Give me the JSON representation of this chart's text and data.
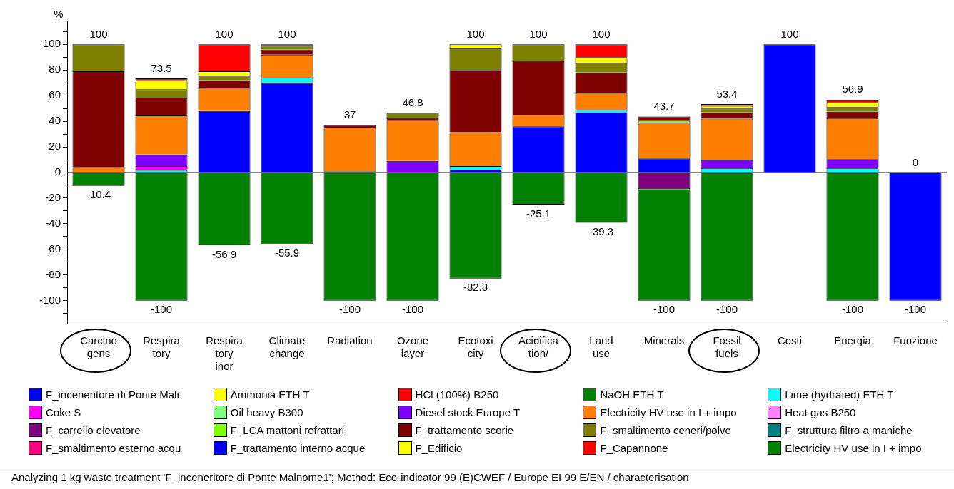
{
  "chart_data": {
    "type": "bar",
    "stacked": true,
    "ylabel": "%",
    "categories": [
      "Carcinogens",
      "Respiratory",
      "Respiratory inor",
      "Climate change",
      "Radiation",
      "Ozone layer",
      "Ecotoxicity",
      "Acidification/",
      "Land use",
      "Minerals",
      "Fossil fuels",
      "Costi",
      "Energia",
      "Funzione"
    ],
    "series": [
      {
        "name": "F_inceneritore di Ponte Malr",
        "color": "#0000ff",
        "values": [
          null,
          null,
          48,
          70,
          null,
          null,
          2.5,
          36,
          47,
          11,
          null,
          100,
          null,
          -100
        ]
      },
      {
        "name": "Ammonia ETH T",
        "color": "#ffff00",
        "values": [
          null,
          null,
          null,
          null,
          null,
          null,
          null,
          null,
          null,
          null,
          null,
          null,
          null,
          null
        ]
      },
      {
        "name": "HCl (100%) B250",
        "color": "#ff0000",
        "values": [
          null,
          null,
          null,
          null,
          null,
          null,
          null,
          null,
          null,
          null,
          null,
          null,
          null,
          null
        ]
      },
      {
        "name": "NaOH ETH T",
        "color": "#008000",
        "values": [
          null,
          null,
          null,
          null,
          1,
          null,
          null,
          null,
          null,
          null,
          null,
          null,
          null,
          null
        ]
      },
      {
        "name": "Lime (hydrated) ETH T",
        "color": "#00ffff",
        "values": [
          null,
          2,
          null,
          4,
          null,
          null,
          2.5,
          null,
          2,
          null,
          3.5,
          null,
          3.5,
          null
        ]
      },
      {
        "name": "Coke S",
        "color": "#ff00ff",
        "values": [
          null,
          3,
          null,
          null,
          null,
          null,
          null,
          null,
          null,
          null,
          null,
          null,
          null,
          null
        ]
      },
      {
        "name": "Oil heavy B300",
        "color": "#80ff80",
        "values": [
          null,
          null,
          null,
          null,
          null,
          null,
          null,
          null,
          null,
          null,
          null,
          null,
          null,
          null
        ]
      },
      {
        "name": "Diesel stock Europe T",
        "color": "#8000ff",
        "values": [
          null,
          9,
          null,
          null,
          null,
          9,
          null,
          null,
          null,
          null,
          6.5,
          null,
          7,
          null
        ]
      },
      {
        "name": "Electricity HV use in I + impo",
        "color": "#ff8000",
        "values": [
          4,
          30.5,
          18,
          18,
          34,
          31.5,
          26.5,
          9,
          13,
          28,
          32,
          null,
          32,
          null
        ]
      },
      {
        "name": "Heat gas B250",
        "color": "#ff80ff",
        "values": [
          null,
          null,
          null,
          null,
          null,
          null,
          null,
          null,
          null,
          null,
          null,
          null,
          null,
          null
        ]
      },
      {
        "name": "F_carrello elevatore",
        "color": "#800080",
        "values": [
          null,
          null,
          null,
          null,
          null,
          null,
          null,
          null,
          null,
          -13,
          null,
          null,
          null,
          null
        ]
      },
      {
        "name": "F_LCA mattoni refrattari",
        "color": "#80ff00",
        "values": [
          null,
          null,
          null,
          null,
          null,
          null,
          null,
          null,
          null,
          1.5,
          null,
          null,
          null,
          null
        ]
      },
      {
        "name": "F_trattamento scorie",
        "color": "#800000",
        "values": [
          75,
          14,
          6,
          4,
          2,
          2,
          48.5,
          42,
          16,
          3.2,
          5,
          null,
          5,
          null
        ]
      },
      {
        "name": "F_smaltimento ceneri/polve",
        "color": "#808000",
        "values": [
          21,
          6.5,
          3.5,
          3,
          null,
          4.3,
          17,
          13,
          7.5,
          null,
          3,
          null,
          3.5,
          null
        ]
      },
      {
        "name": "F_struttura filtro a maniche",
        "color": "#008080",
        "values": [
          null,
          null,
          null,
          null,
          null,
          null,
          null,
          null,
          null,
          null,
          null,
          null,
          null,
          null
        ]
      },
      {
        "name": "F_smaltimento esterno acqu",
        "color": "#ff0080",
        "values": [
          null,
          null,
          null,
          null,
          null,
          null,
          null,
          null,
          null,
          null,
          null,
          null,
          null,
          null
        ]
      },
      {
        "name": "F_trattamento interno acque",
        "color": "#0000ff",
        "values": [
          null,
          null,
          null,
          null,
          null,
          null,
          null,
          null,
          null,
          null,
          null,
          null,
          null,
          null
        ]
      },
      {
        "name": "F_Edificio",
        "color": "#ffff00",
        "values": [
          null,
          7,
          3.5,
          null,
          null,
          null,
          3,
          null,
          4.5,
          null,
          2,
          null,
          4,
          null
        ]
      },
      {
        "name": "F_Capannone",
        "color": "#ff0000",
        "values": [
          null,
          1.5,
          21,
          1,
          null,
          null,
          null,
          null,
          10,
          null,
          1.4,
          null,
          1.9,
          null
        ]
      },
      {
        "name": "Electricity HV use in I + impo",
        "color": "#008000",
        "values": [
          -10.4,
          -100,
          -56.9,
          -55.9,
          -100,
          -100,
          -82.8,
          -25.1,
          -39.3,
          -87,
          -100,
          null,
          -100,
          null
        ]
      }
    ],
    "ylim": [
      -118,
      118
    ],
    "yticks": [
      -100,
      {
        "value": -110,
        "label": null
      },
      {
        "value": -90,
        "label": null
      },
      -80,
      {
        "value": -70,
        "label": null
      },
      -60,
      {
        "value": -50,
        "label": null
      },
      -40,
      {
        "value": -30,
        "label": null
      },
      -20,
      {
        "value": -10,
        "label": null
      },
      0,
      {
        "value": 10,
        "label": null
      },
      20,
      {
        "value": 30,
        "label": null
      },
      40,
      {
        "value": 50,
        "label": null
      },
      60,
      {
        "value": 70,
        "label": null
      },
      80,
      {
        "value": 90,
        "label": null
      },
      100,
      {
        "value": 110,
        "label": null
      }
    ],
    "legend": "bottom",
    "annotations": [
      {
        "text": "100",
        "x": "Carcinogens",
        "y": 100
      },
      {
        "text": "-10.4",
        "x": "Carcinogens",
        "y": -10.4
      },
      {
        "text": "73.5",
        "x": "Respiratory",
        "y": 73.5
      },
      {
        "text": "-100",
        "x": "Respiratory",
        "y": -100
      },
      {
        "text": "100",
        "x": "Respiratory inor",
        "y": 100
      },
      {
        "text": "-56.9",
        "x": "Respiratory inor",
        "y": -56.9
      },
      {
        "text": "100",
        "x": "Climate change",
        "y": 100
      },
      {
        "text": "-55.9",
        "x": "Climate change",
        "y": -55.9
      },
      {
        "text": "37",
        "x": "Radiation",
        "y": 37
      },
      {
        "text": "-100",
        "x": "Radiation",
        "y": -100
      },
      {
        "text": "46.8",
        "x": "Ozone layer",
        "y": 46.8
      },
      {
        "text": "-100",
        "x": "Ozone layer",
        "y": -100
      },
      {
        "text": "100",
        "x": "Ecotoxicity",
        "y": 100
      },
      {
        "text": "-82.8",
        "x": "Ecotoxicity",
        "y": -82.8
      },
      {
        "text": "100",
        "x": "Acidification/",
        "y": 100
      },
      {
        "text": "-25.1",
        "x": "Acidification/",
        "y": -25.1
      },
      {
        "text": "100",
        "x": "Land use",
        "y": 100
      },
      {
        "text": "-39.3",
        "x": "Land use",
        "y": -39.3
      },
      {
        "text": "43.7",
        "x": "Minerals",
        "y": 43.7
      },
      {
        "text": "-100",
        "x": "Minerals",
        "y": -100
      },
      {
        "text": "53.4",
        "x": "Fossil fuels",
        "y": 53.4
      },
      {
        "text": "-100",
        "x": "Fossil fuels",
        "y": -100
      },
      {
        "text": "100",
        "x": "Costi",
        "y": 100
      },
      {
        "text": "56.9",
        "x": "Energia",
        "y": 56.9
      },
      {
        "text": "-100",
        "x": "Energia",
        "y": -100
      },
      {
        "text": "0",
        "x": "Funzione",
        "y": 0
      },
      {
        "text": "-100",
        "x": "Funzione",
        "y": -100
      },
      "Analyzing 1 kg waste treatment 'F_inceneritore di Ponte Malnome1';  Method: Eco-indicator 99 (E)CWEF /  Europe EI 99 E/EN / characterisation"
    ]
  }
}
